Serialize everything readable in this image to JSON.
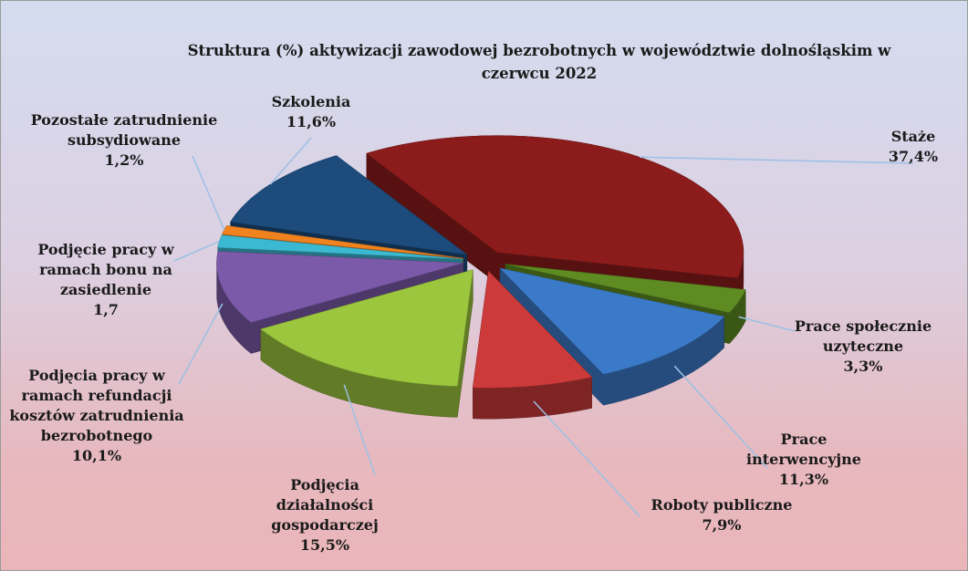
{
  "chart_data": {
    "type": "pie",
    "title": "Struktura (%) aktywizacji zawodowej bezrobotnych w województwie dolnośląskim w czerwcu 2022",
    "categories": [
      "Staże",
      "Prace społecznie uzyteczne",
      "Prace interwencyjne",
      "Roboty publiczne",
      "Podjęcia działalności gospodarczej",
      "Podjęcia pracy w ramach refundacji kosztów zatrudnienia bezrobotnego",
      "Podjęcie pracy w ramach bonu na zasiedlenie",
      "Pozostałe zatrudnienie subsydiowane",
      "Szkolenia"
    ],
    "values": [
      37.4,
      3.3,
      11.3,
      7.9,
      15.5,
      10.1,
      1.7,
      1.2,
      11.6
    ],
    "value_labels": [
      "37,4%",
      "3,3%",
      "11,3%",
      "7,9%",
      "15,5%",
      "10,1%",
      "1,7",
      "1,2%",
      "11,6%"
    ],
    "colors": [
      "#8c1c1c",
      "#5e8c22",
      "#3b7ac9",
      "#cc3a3a",
      "#9cc63e",
      "#7b5aa9",
      "#3cb9d2",
      "#f0831f",
      "#1c4b7c"
    ]
  }
}
